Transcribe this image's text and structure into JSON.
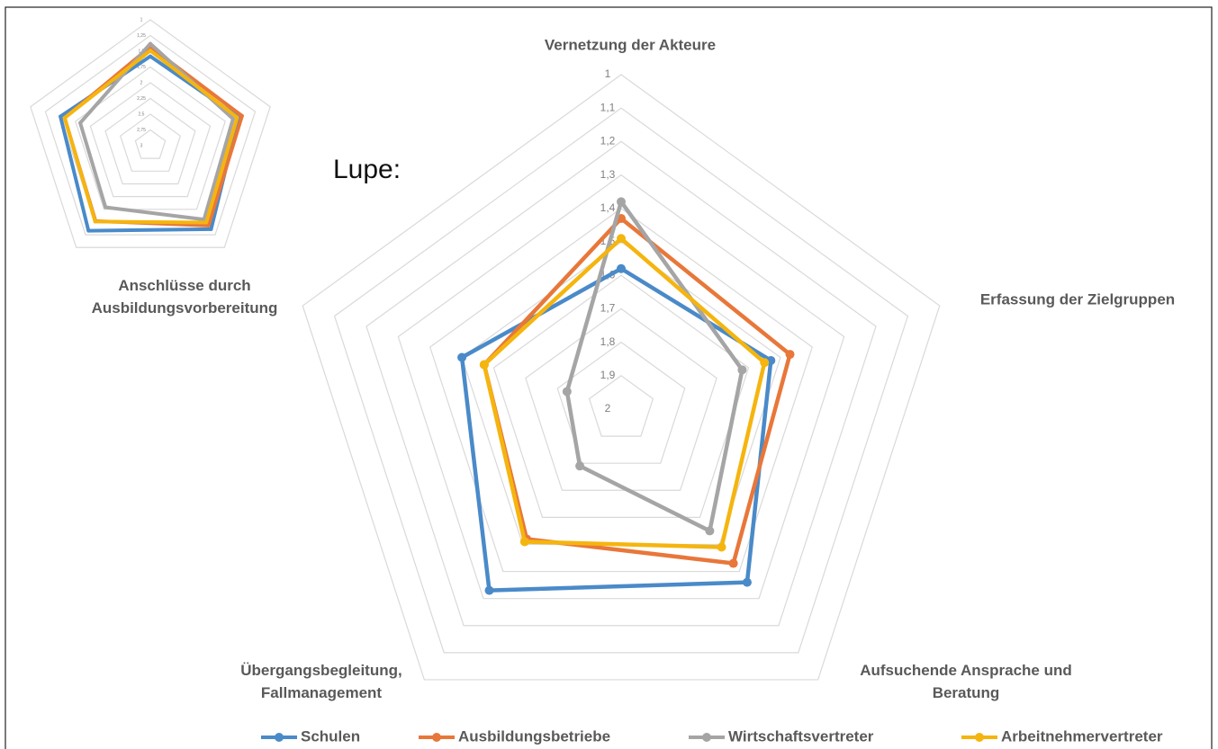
{
  "chart_data": [
    {
      "type": "radar",
      "reversed": true,
      "categories": [
        "Vernetzung der Akteure",
        "Erfassung der Zielgruppen",
        "Aufsuchende Ansprache und Beratung",
        "Übergangsbegleitung, Fallmanagement",
        "Anschlüsse durch Ausbildungsvorbereitung"
      ],
      "ylim": [
        1,
        2
      ],
      "yticks": [
        1,
        {
          "value": 1.1,
          "label": "1,1"
        },
        {
          "value": 1.2,
          "label": "1,2"
        },
        {
          "value": 1.3,
          "label": "1,3"
        },
        {
          "value": 1.4,
          "label": "1,4"
        },
        {
          "value": 1.5,
          "label": "1,5"
        },
        {
          "value": 1.6,
          "label": "1,6"
        },
        {
          "value": 1.7,
          "label": "1,7"
        },
        {
          "value": 1.8,
          "label": "1,8"
        },
        {
          "value": 1.9,
          "label": "1,9"
        },
        2
      ],
      "series": [
        {
          "name": "Schulen",
          "color": "#4a8ac9",
          "values": [
            1.58,
            1.53,
            1.36,
            1.33,
            1.5
          ]
        },
        {
          "name": "Ausbildungsbetriebe",
          "color": "#e8773a",
          "values": [
            1.43,
            1.47,
            1.43,
            1.52,
            1.57
          ]
        },
        {
          "name": "Wirtschaftsvertreter",
          "color": "#a5a5a5",
          "values": [
            1.38,
            1.62,
            1.55,
            1.79,
            1.83
          ]
        },
        {
          "name": "Arbeitnehmervertreter",
          "color": "#f5b50f",
          "values": [
            1.49,
            1.55,
            1.49,
            1.51,
            1.57
          ]
        }
      ],
      "legend": "bottom",
      "grid": true
    },
    {
      "type": "radar",
      "reversed": true,
      "ylim": [
        1,
        3
      ],
      "yticks": [
        1,
        {
          "value": 1.25,
          "label": "1,25"
        },
        {
          "value": 1.5,
          "label": "1,5"
        },
        {
          "value": 1.75,
          "label": "1,75"
        },
        2,
        {
          "value": 2.25,
          "label": "2,25"
        },
        {
          "value": 2.5,
          "label": "2,5"
        },
        {
          "value": 2.75,
          "label": "2,75"
        },
        3
      ],
      "grid": true
    },
    {
      "type": "annotation",
      "text": "Lupe:"
    }
  ]
}
